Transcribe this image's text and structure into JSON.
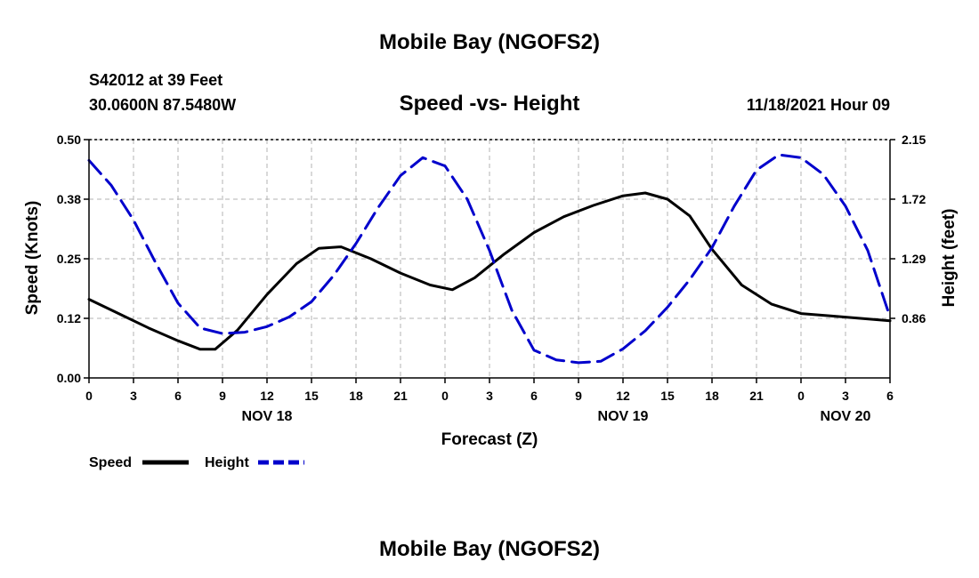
{
  "header": {
    "title": "Mobile Bay (NGOFS2)",
    "station": "S42012 at 39 Feet",
    "coords": "30.0600N  87.5480W",
    "datetime": "11/18/2021 Hour 09"
  },
  "footer": {
    "title": "Mobile Bay (NGOFS2)"
  },
  "colors": {
    "speed": "#000000",
    "height": "#0000cc",
    "grid": "#b3b3b3"
  },
  "chart_data": {
    "type": "line",
    "title": "Speed -vs- Height",
    "xlabel": "Forecast (Z)",
    "ylabel": "Speed (Knots)",
    "y2label": "Height (feet)",
    "x_unit": "forecast hour",
    "xlim": [
      0,
      54
    ],
    "ylim": [
      0,
      0.5
    ],
    "y2lim": [
      0.43,
      2.15
    ],
    "x_ticks": [
      0,
      3,
      6,
      9,
      12,
      15,
      18,
      21,
      24,
      27,
      30,
      33,
      36,
      39,
      42,
      45,
      48,
      51,
      54
    ],
    "x_tick_labels": [
      "0",
      "3",
      "6",
      "9",
      "12",
      "15",
      "18",
      "21",
      "0",
      "3",
      "6",
      "9",
      "12",
      "15",
      "18",
      "21",
      "0",
      "3",
      "6"
    ],
    "y_ticks": [
      0,
      0.125,
      0.25,
      0.375,
      0.5
    ],
    "y_tick_labels": [
      "0.00",
      "0.12",
      "0.25",
      "0.38",
      "0.50"
    ],
    "y2_ticks": [
      0.86,
      1.29,
      1.72,
      2.15
    ],
    "y2_tick_labels": [
      "0.86",
      "1.29",
      "1.72",
      "2.15"
    ],
    "day_labels": [
      {
        "label": "NOV 18",
        "x": 12
      },
      {
        "label": "NOV 19",
        "x": 36
      },
      {
        "label": "NOV 20",
        "x": 51
      }
    ],
    "grid": true,
    "legend_position": "bottom-left",
    "series": [
      {
        "name": "Speed",
        "axis": "left",
        "style": "solid",
        "x": [
          0,
          2,
          4,
          6,
          7.5,
          8.5,
          10,
          12,
          14,
          15.5,
          17,
          19,
          21,
          23,
          24.5,
          26,
          28,
          30,
          32,
          34,
          36,
          37.5,
          39,
          40.5,
          42,
          44,
          46,
          48,
          50,
          52,
          54
        ],
        "values": [
          0.165,
          0.135,
          0.105,
          0.078,
          0.06,
          0.06,
          0.1,
          0.175,
          0.24,
          0.272,
          0.275,
          0.25,
          0.22,
          0.195,
          0.185,
          0.21,
          0.26,
          0.305,
          0.338,
          0.362,
          0.382,
          0.388,
          0.375,
          0.34,
          0.27,
          0.195,
          0.155,
          0.135,
          0.13,
          0.125,
          0.12
        ]
      },
      {
        "name": "Height",
        "axis": "right",
        "style": "dashed",
        "x": [
          0,
          1.5,
          3,
          4.5,
          6,
          7.5,
          9,
          10.5,
          12,
          13.5,
          15,
          16.5,
          18,
          19.5,
          21,
          22.5,
          24,
          25.5,
          27,
          28.5,
          30,
          31.5,
          33,
          34.5,
          36,
          37.5,
          39,
          40.5,
          42,
          43.5,
          45,
          46.5,
          48,
          49.5,
          51,
          52.5,
          54
        ],
        "values": [
          2.0,
          1.82,
          1.57,
          1.26,
          0.97,
          0.79,
          0.75,
          0.76,
          0.8,
          0.87,
          0.98,
          1.17,
          1.4,
          1.66,
          1.89,
          2.02,
          1.96,
          1.72,
          1.35,
          0.92,
          0.63,
          0.56,
          0.54,
          0.55,
          0.64,
          0.77,
          0.94,
          1.14,
          1.37,
          1.67,
          1.93,
          2.04,
          2.02,
          1.9,
          1.67,
          1.35,
          0.87
        ]
      }
    ]
  }
}
